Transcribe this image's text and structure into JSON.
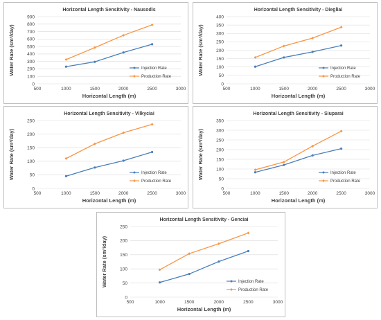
{
  "colors": {
    "injection": "#4a7ebb",
    "production": "#f79646"
  },
  "chart_data": [
    {
      "type": "line",
      "title": "Horizontal Length Sensitivity - Nausodis",
      "xlabel": "Horizontal Length (m)",
      "ylabel": "Water Rate (sm³/day)",
      "xlim": [
        500,
        3000
      ],
      "ylim": [
        0,
        900
      ],
      "xticks": [
        "500",
        "1000",
        "1500",
        "2000",
        "2500",
        "3000"
      ],
      "yticks": [
        "0",
        "100",
        "200",
        "300",
        "400",
        "500",
        "600",
        "700",
        "800",
        "900"
      ],
      "x": [
        1000,
        1500,
        2000,
        2500
      ],
      "series": [
        {
          "name": "Injection Rate",
          "values": [
            230,
            295,
            420,
            530
          ]
        },
        {
          "name": "Production Rate",
          "values": [
            325,
            485,
            650,
            790
          ]
        }
      ]
    },
    {
      "type": "line",
      "title": "Horizontal Length Sensitivity - Diegliai",
      "xlabel": "Horizontal Length (m)",
      "ylabel": "Water Rate (sm³/day)",
      "xlim": [
        500,
        3000
      ],
      "ylim": [
        0,
        400
      ],
      "xticks": [
        "500",
        "1000",
        "1500",
        "2000",
        "2500",
        "3000"
      ],
      "yticks": [
        "0",
        "50",
        "100",
        "150",
        "200",
        "250",
        "300",
        "350",
        "400"
      ],
      "x": [
        1000,
        1500,
        2000,
        2500
      ],
      "series": [
        {
          "name": "Injection Rate",
          "values": [
            102,
            157,
            190,
            228
          ]
        },
        {
          "name": "Production Rate",
          "values": [
            157,
            225,
            272,
            337
          ]
        }
      ]
    },
    {
      "type": "line",
      "title": "Horizontal Length Sensitivity - Vilkyciai",
      "xlabel": "Horizontal Length (m)",
      "ylabel": "Water Rate (sm³/day)",
      "xlim": [
        500,
        3000
      ],
      "ylim": [
        0,
        250
      ],
      "xticks": [
        "500",
        "1000",
        "1500",
        "2000",
        "2500",
        "3000"
      ],
      "yticks": [
        "0",
        "50",
        "100",
        "150",
        "200",
        "250"
      ],
      "x": [
        1000,
        1500,
        2000,
        2500
      ],
      "series": [
        {
          "name": "Injection Rate",
          "values": [
            45,
            77,
            102,
            134
          ]
        },
        {
          "name": "Production Rate",
          "values": [
            110,
            164,
            205,
            236
          ]
        }
      ]
    },
    {
      "type": "line",
      "title": "Horizontal Length Sensitivity - Siuparai",
      "xlabel": "Horizontal Length (m)",
      "ylabel": "Water Rate (sm³/day)",
      "xlim": [
        500,
        3000
      ],
      "ylim": [
        0,
        350
      ],
      "xticks": [
        "500",
        "1000",
        "1500",
        "2000",
        "2500",
        "3000"
      ],
      "yticks": [
        "0",
        "50",
        "100",
        "150",
        "200",
        "250",
        "300",
        "350"
      ],
      "x": [
        1000,
        1500,
        2000,
        2500
      ],
      "series": [
        {
          "name": "Injection Rate",
          "values": [
            83,
            121,
            170,
            205
          ]
        },
        {
          "name": "Production Rate",
          "values": [
            96,
            136,
            218,
            295
          ]
        }
      ]
    },
    {
      "type": "line",
      "title": "Horizontal Length Sensitivity - Genciai",
      "xlabel": "Horizontal Length (m)",
      "ylabel": "Water Rate (sm³/day)",
      "xlim": [
        500,
        3000
      ],
      "ylim": [
        0,
        250
      ],
      "xticks": [
        "500",
        "1000",
        "1500",
        "2000",
        "2500",
        "3000"
      ],
      "yticks": [
        "0",
        "50",
        "100",
        "150",
        "200",
        "250"
      ],
      "x": [
        1000,
        1500,
        2000,
        2500
      ],
      "series": [
        {
          "name": "Injection Rate",
          "values": [
            52,
            82,
            126,
            163
          ]
        },
        {
          "name": "Production Rate",
          "values": [
            97,
            154,
            189,
            227
          ]
        }
      ]
    }
  ]
}
